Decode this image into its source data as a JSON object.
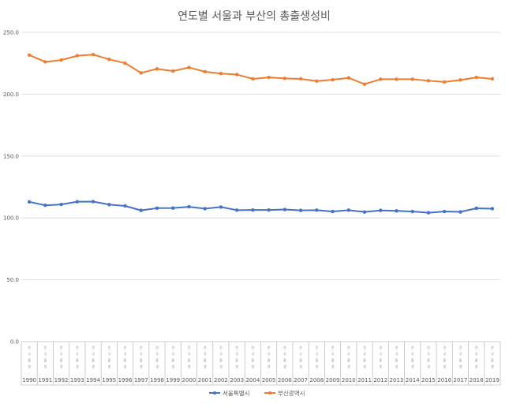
{
  "chart_data": {
    "type": "line",
    "title": "연도별 서울과 부산의 총출생성비",
    "xlabel": "",
    "ylabel": "",
    "ylim": [
      0,
      250
    ],
    "yticks": [
      "0.0",
      "50.0",
      "100.0",
      "150.0",
      "200.0",
      "250.0"
    ],
    "grid": true,
    "legend_position": "bottom",
    "category_sublabel": [
      "전",
      "국",
      "출",
      "생"
    ],
    "categories": [
      "1990",
      "1991",
      "1992",
      "1993",
      "1994",
      "1995",
      "1996",
      "1997",
      "1998",
      "1999",
      "2000",
      "2001",
      "2002",
      "2003",
      "2004",
      "2005",
      "2006",
      "2007",
      "2008",
      "2009",
      "2010",
      "2011",
      "2012",
      "2013",
      "2014",
      "2015",
      "2016",
      "2017",
      "2018",
      "2019"
    ],
    "series": [
      {
        "name": "서울특별시",
        "color": "#4472c4",
        "values": [
          113.0,
          110.2,
          110.9,
          113.1,
          113.2,
          110.8,
          109.7,
          106.1,
          107.9,
          108.0,
          109.0,
          107.5,
          108.8,
          106.3,
          106.4,
          106.4,
          106.8,
          106.1,
          106.3,
          105.2,
          106.3,
          104.8,
          106.1,
          105.7,
          105.2,
          104.2,
          105.2,
          104.9,
          107.8,
          107.5
        ]
      },
      {
        "name": "부산광역시",
        "color": "#ed7d31",
        "values": [
          231.6,
          226.1,
          227.6,
          231.1,
          232.0,
          228.2,
          225.1,
          217.2,
          220.5,
          218.7,
          221.6,
          218.2,
          216.7,
          215.9,
          212.4,
          213.6,
          212.8,
          212.4,
          210.6,
          211.7,
          213.2,
          208.1,
          212.1,
          212.1,
          212.1,
          210.9,
          209.9,
          211.5,
          213.6,
          212.4
        ]
      }
    ]
  }
}
